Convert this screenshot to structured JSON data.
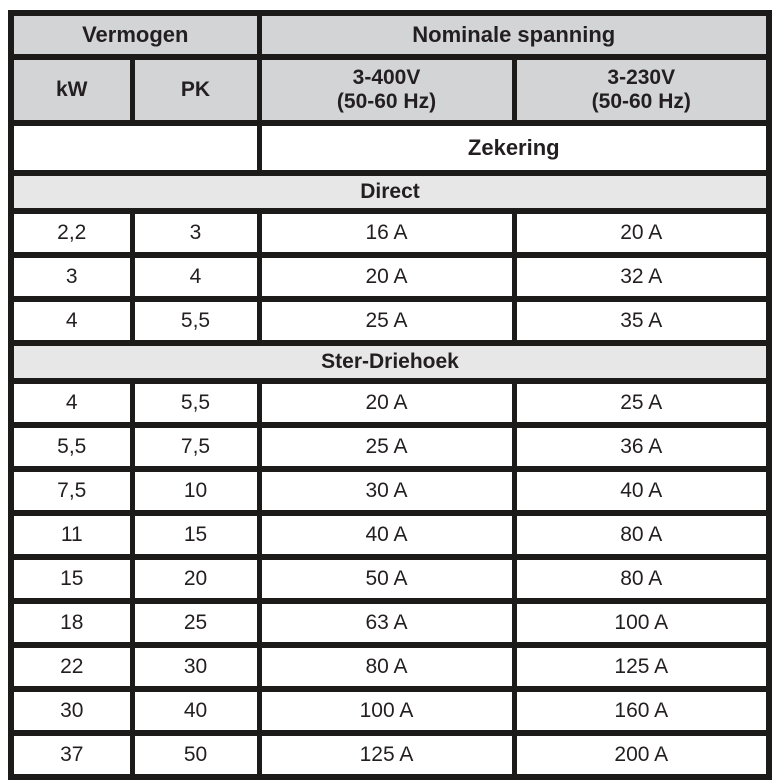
{
  "table": {
    "header": {
      "group_power": "Vermogen",
      "group_voltage": "Nominale spanning",
      "col_kw": "kW",
      "col_pk": "PK",
      "col_400v_line1": "3-400V",
      "col_400v_line2": "(50-60 Hz)",
      "col_230v_line1": "3-230V",
      "col_230v_line2": "(50-60 Hz)",
      "fuse_label": "Zekering"
    },
    "column_keys": [
      "kw",
      "pk",
      "fuse-400v",
      "fuse-230v"
    ],
    "sections": [
      {
        "title": "Direct",
        "rows": [
          [
            "2,2",
            "3",
            "16 A",
            "20 A"
          ],
          [
            "3",
            "4",
            "20 A",
            "32 A"
          ],
          [
            "4",
            "5,5",
            "25 A",
            "35 A"
          ]
        ]
      },
      {
        "title": "Ster-Driehoek",
        "rows": [
          [
            "4",
            "5,5",
            "20 A",
            "25 A"
          ],
          [
            "5,5",
            "7,5",
            "25 A",
            "36 A"
          ],
          [
            "7,5",
            "10",
            "30 A",
            "40 A"
          ],
          [
            "11",
            "15",
            "40 A",
            "80 A"
          ],
          [
            "15",
            "20",
            "50 A",
            "80 A"
          ],
          [
            "18",
            "25",
            "63 A",
            "100 A"
          ],
          [
            "22",
            "30",
            "80 A",
            "125 A"
          ],
          [
            "30",
            "40",
            "100 A",
            "160 A"
          ],
          [
            "37",
            "50",
            "125 A",
            "200 A"
          ]
        ]
      }
    ],
    "colors": {
      "header_bg": "#d3d4d6",
      "section_bg": "#e7e7e8",
      "border": "#1c1b1a",
      "text": "#231f20"
    }
  }
}
